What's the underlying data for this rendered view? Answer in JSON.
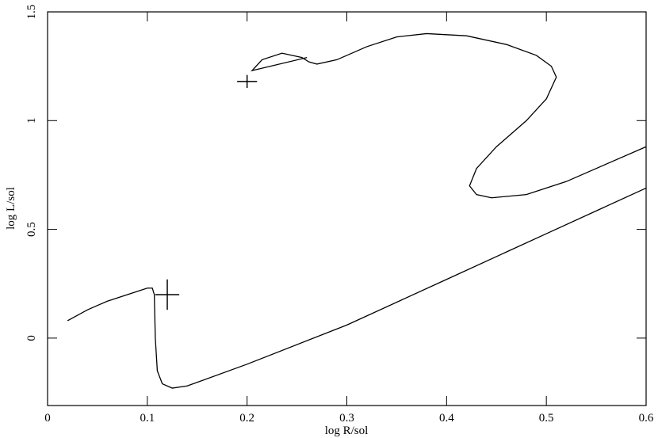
{
  "chart_data": {
    "type": "line",
    "x_label": "log R/sol",
    "y_label": "log L/sol",
    "xlim": [
      0,
      0.6
    ],
    "ylim": [
      -0.31,
      1.5
    ],
    "xticks": [
      0,
      0.1,
      0.2,
      0.3,
      0.4,
      0.5,
      0.6
    ],
    "yticks": [
      0,
      0.5,
      1,
      1.5
    ],
    "series": [
      {
        "color": "#000000",
        "x": [
          0.02,
          0.04,
          0.06,
          0.08,
          0.1,
          0.105,
          0.107,
          0.108,
          0.11,
          0.115,
          0.125,
          0.14,
          0.2,
          0.3,
          0.4,
          0.5,
          0.6
        ],
        "values": [
          0.08,
          0.13,
          0.17,
          0.2,
          0.23,
          0.23,
          0.2,
          0.0,
          -0.15,
          -0.21,
          -0.23,
          -0.22,
          -0.12,
          0.06,
          0.27,
          0.48,
          0.69
        ]
      },
      {
        "color": "#000000",
        "x": [
          0.26,
          0.205,
          0.215,
          0.235,
          0.255,
          0.262,
          0.27,
          0.29,
          0.32,
          0.35,
          0.38,
          0.42,
          0.46,
          0.49,
          0.505,
          0.51,
          0.5,
          0.48,
          0.45,
          0.43,
          0.423,
          0.43,
          0.445,
          0.48,
          0.52,
          0.56,
          0.6
        ],
        "values": [
          1.29,
          1.23,
          1.28,
          1.31,
          1.29,
          1.27,
          1.26,
          1.28,
          1.34,
          1.385,
          1.4,
          1.39,
          1.35,
          1.3,
          1.25,
          1.2,
          1.1,
          1.0,
          0.88,
          0.78,
          0.7,
          0.66,
          0.645,
          0.66,
          0.72,
          0.8,
          0.88
        ]
      }
    ],
    "points": [
      {
        "x": 0.2,
        "y": 1.18,
        "xerr": 0.01,
        "yerr": 0.03
      },
      {
        "x": 0.12,
        "y": 0.2,
        "xerr": 0.012,
        "yerr": 0.07
      }
    ]
  }
}
